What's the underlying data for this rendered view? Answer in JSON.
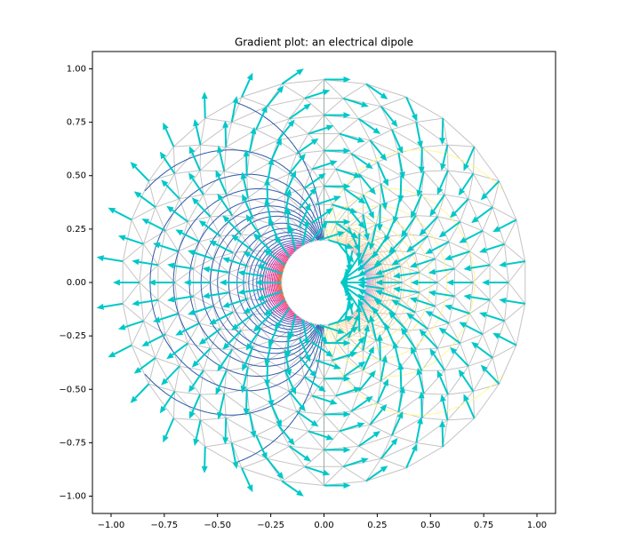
{
  "chart_data": {
    "type": "gradient",
    "title": "Gradient plot: an electrical dipole",
    "xlim": [
      -1.0875,
      1.0875
    ],
    "ylim": [
      -1.081,
      1.081
    ],
    "xticks": [
      {
        "value": -1,
        "label": "−1.00"
      },
      {
        "value": -0.75,
        "label": "−0.75"
      },
      {
        "value": -0.5,
        "label": "−0.50"
      },
      {
        "value": -0.25,
        "label": "−0.25"
      },
      {
        "value": 0,
        "label": "0.00"
      },
      {
        "value": 0.25,
        "label": "0.25"
      },
      {
        "value": 0.5,
        "label": "0.50"
      },
      {
        "value": 0.75,
        "label": "0.75"
      },
      {
        "value": 1,
        "label": "1.00"
      }
    ],
    "yticks": [
      {
        "value": -1,
        "label": "−1.00"
      },
      {
        "value": -0.75,
        "label": "−0.75"
      },
      {
        "value": -0.5,
        "label": "−0.50"
      },
      {
        "value": -0.25,
        "label": "−0.25"
      },
      {
        "value": 0,
        "label": "0.00"
      },
      {
        "value": 0.25,
        "label": "0.25"
      },
      {
        "value": 0.5,
        "label": "0.50"
      },
      {
        "value": 0.75,
        "label": "0.75"
      },
      {
        "value": 1,
        "label": "1.00"
      }
    ],
    "mesh": {
      "n_angles": 30,
      "n_radii": 10,
      "min_radius": 0.2,
      "max_radius": 0.95
    },
    "mesh_color": "#c4c4c4",
    "arrow_color": "#00c8c8",
    "levels": [
      0.02,
      0.04,
      0.06,
      0.08,
      0.1,
      0.12,
      0.14,
      0.16,
      0.18,
      0.2,
      0.22,
      0.24,
      0.26,
      0.28,
      0.3,
      0.32,
      0.34,
      0.36,
      0.38,
      0.4,
      0.42,
      0.44,
      0.46,
      0.48,
      0.5,
      0.51,
      0.52,
      0.53,
      0.54,
      0.55,
      0.56,
      0.57,
      0.58,
      0.6,
      0.62,
      0.64,
      0.66,
      0.68,
      0.7,
      0.72,
      0.74,
      0.76,
      0.78,
      0.8,
      0.82,
      0.84,
      0.86,
      0.88,
      0.9,
      0.92,
      0.94,
      0.96,
      0.98
    ],
    "cmap": [
      [
        0,
        "#b8a8e8"
      ],
      [
        0.25,
        "#ffc8a0"
      ],
      [
        0.499,
        "#ffff90"
      ],
      [
        0.501,
        "#2858a8"
      ],
      [
        0.7,
        "#4060c0"
      ],
      [
        0.8,
        "#e02090"
      ],
      [
        0.9,
        "#f04080"
      ],
      [
        1,
        "#e07010"
      ]
    ]
  }
}
